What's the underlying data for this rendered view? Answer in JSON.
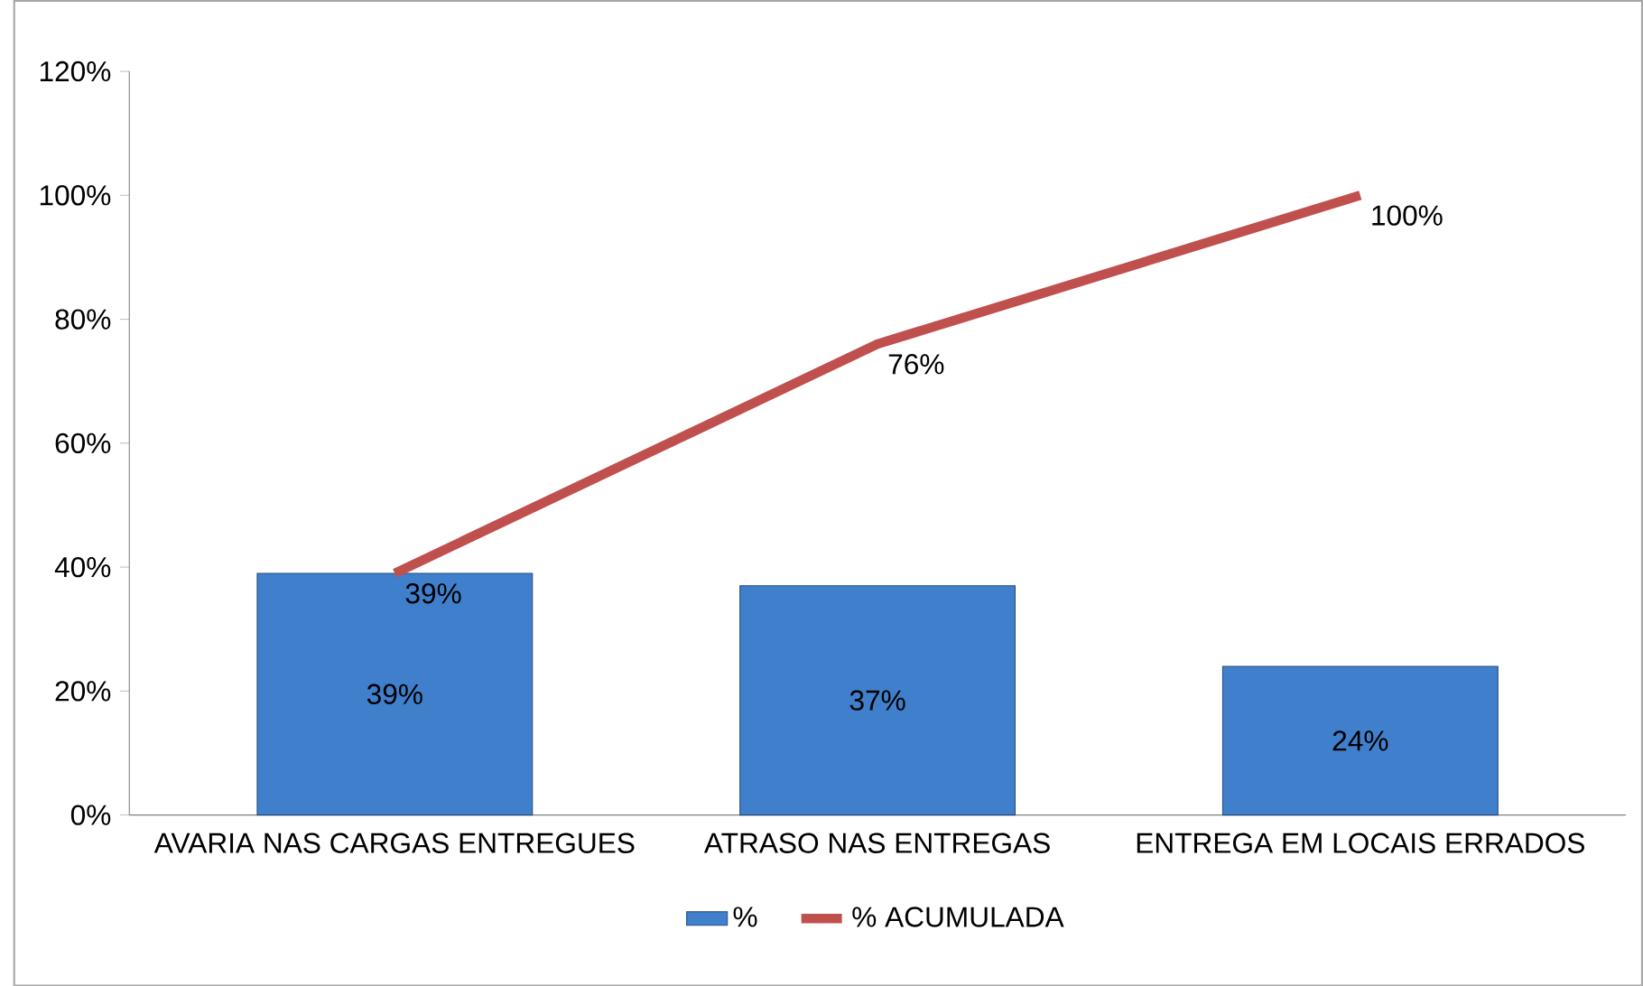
{
  "chart_data": {
    "type": "bar",
    "categories": [
      "AVARIA NAS CARGAS ENTREGUES",
      "ATRASO NAS ENTREGAS",
      "ENTREGA EM LOCAIS ERRADOS"
    ],
    "series": [
      {
        "name": "%",
        "color": "#3f7fcc",
        "values": [
          39,
          37,
          24
        ],
        "value_labels": [
          "39%",
          "37%",
          "24%"
        ]
      },
      {
        "name": "% ACUMULADA",
        "type": "line",
        "color": "#c0504d",
        "values": [
          39,
          76,
          100
        ],
        "value_labels": [
          "39%",
          "76%",
          "100%"
        ]
      }
    ],
    "ylim": [
      0,
      120
    ],
    "yticks": [
      {
        "value": 0,
        "label": "0%"
      },
      {
        "value": 20,
        "label": "20%"
      },
      {
        "value": 40,
        "label": "40%"
      },
      {
        "value": 60,
        "label": "60%"
      },
      {
        "value": 80,
        "label": "80%"
      },
      {
        "value": 100,
        "label": "100%"
      },
      {
        "value": 120,
        "label": "120%"
      }
    ],
    "grid": false,
    "legend": "bottom"
  }
}
